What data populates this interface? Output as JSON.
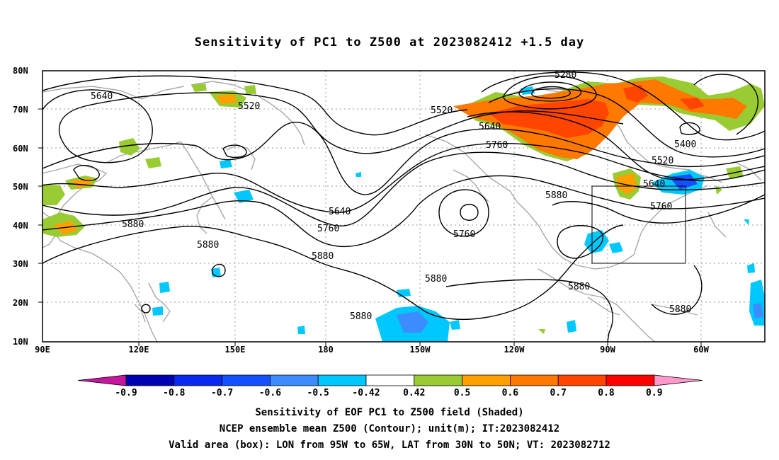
{
  "title": "Sensitivity of PC1 to Z500 at 2023082412 +1.5 day",
  "map": {
    "lat_labels": [
      "80N",
      "70N",
      "60N",
      "50N",
      "40N",
      "30N",
      "20N",
      "10N"
    ],
    "lon_labels": [
      "90E",
      "120E",
      "150E",
      "180",
      "150W",
      "120W",
      "90W",
      "60W"
    ],
    "contour_labels": [
      "5640",
      "5520",
      "5280",
      "5520",
      "5640",
      "5760",
      "5400",
      "5520",
      "5640",
      "5760",
      "5880",
      "5640",
      "5760",
      "5760",
      "5880",
      "5880",
      "5880",
      "5880",
      "5880",
      "5880"
    ],
    "valid_box": {
      "lon_min": "95W",
      "lon_max": "65W",
      "lat_min": "30N",
      "lat_max": "50N"
    }
  },
  "colorbar": {
    "labels": [
      "-0.9",
      "-0.8",
      "-0.7",
      "-0.6",
      "-0.5",
      "-0.42",
      "0.42",
      "0.5",
      "0.6",
      "0.7",
      "0.8",
      "0.9"
    ],
    "colors": [
      "#c5179e",
      "#0000b4",
      "#0a28f0",
      "#1450ff",
      "#3c8cff",
      "#00c8ff",
      "#ffffff",
      "#99cc33",
      "#ffa000",
      "#ff7800",
      "#ff4500",
      "#ff0000",
      "#ff99cc"
    ]
  },
  "captions": {
    "line1": "Sensitivity of EOF PC1 to Z500 field (Shaded)",
    "line2": "NCEP ensemble mean Z500 (Contour); unit(m); IT:2023082412",
    "line3": "Valid area (box): LON from 95W to 65W, LAT from 30N to 50N; VT: 2023082712"
  }
}
